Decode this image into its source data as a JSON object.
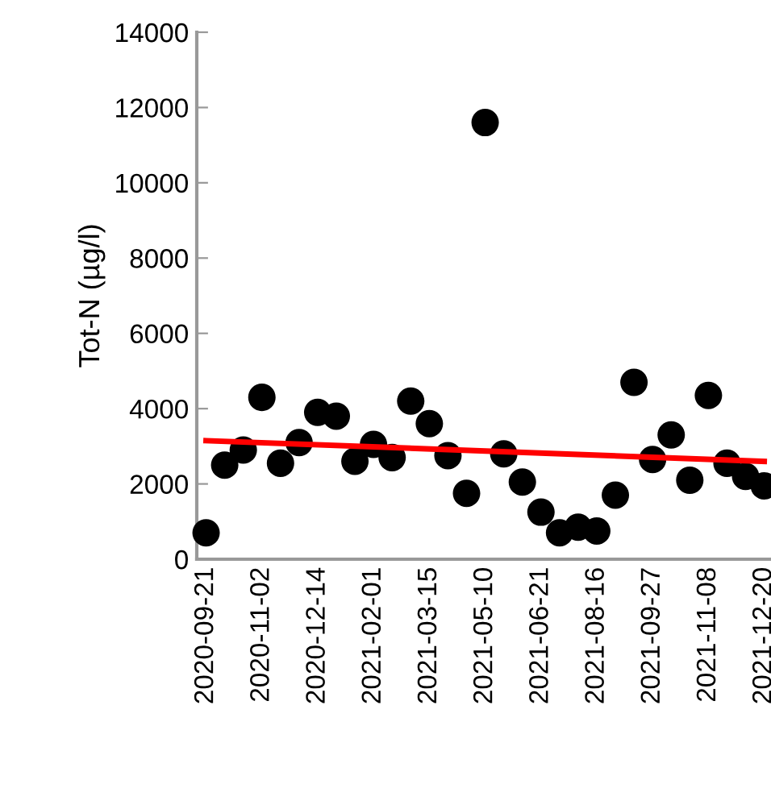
{
  "chart_data": {
    "type": "scatter",
    "ylabel": "Tot-N (µg/l)",
    "categories": [
      "2020-09-21",
      null,
      null,
      "2020-11-02",
      null,
      null,
      "2020-12-14",
      null,
      null,
      "2021-02-01",
      null,
      null,
      "2021-03-15",
      null,
      null,
      "2021-05-10",
      null,
      null,
      "2021-06-21",
      null,
      null,
      "2021-08-16",
      null,
      null,
      "2021-09-27",
      null,
      null,
      "2021-11-08",
      null,
      null,
      "2021-12-20"
    ],
    "series": [
      {
        "color": "#000000",
        "marker": "circle",
        "values": [
          700,
          2500,
          2900,
          4300,
          2550,
          3100,
          3900,
          3800,
          2600,
          3050,
          2700,
          4200,
          3600,
          2750,
          1750,
          11600,
          2800,
          2050,
          1250,
          700,
          850,
          750,
          1700,
          4700,
          2650,
          3300,
          2100,
          4350,
          2550,
          2200,
          1950
        ]
      },
      {
        "type": "line",
        "color": "#ff0000",
        "values": [
          3150,
          null,
          null,
          null,
          null,
          null,
          null,
          null,
          null,
          null,
          null,
          null,
          null,
          null,
          null,
          null,
          null,
          null,
          null,
          null,
          null,
          null,
          null,
          null,
          null,
          null,
          null,
          null,
          null,
          null,
          2600
        ]
      }
    ],
    "ylim": [
      0,
      14000
    ],
    "yticks": [
      0,
      2000,
      4000,
      6000,
      8000,
      10000,
      12000,
      14000
    ],
    "grid": false,
    "legend": false
  }
}
